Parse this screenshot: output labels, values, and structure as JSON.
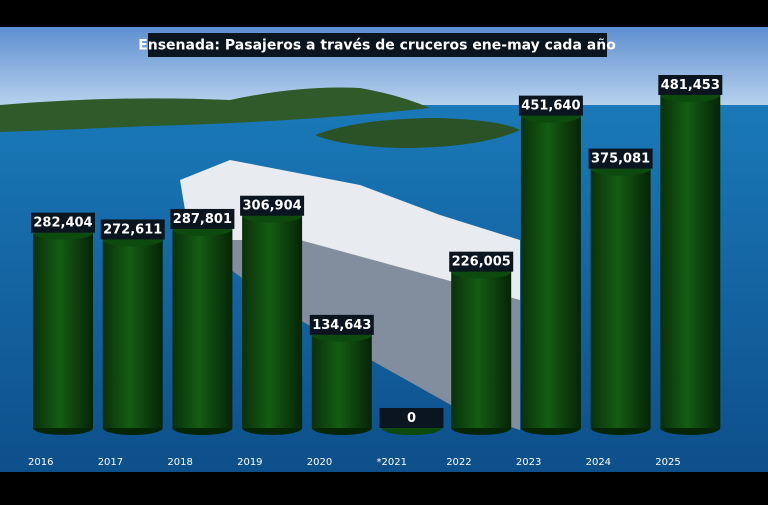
{
  "chart_data": {
    "type": "bar",
    "title": "Ensenada: Pasajeros a través de cruceros ene-may cada año",
    "categories": [
      "2016",
      "2017",
      "2018",
      "2019",
      "2020",
      "*2021",
      "2022",
      "2023",
      "2024",
      "2025"
    ],
    "values": [
      282404,
      272611,
      287801,
      306904,
      134643,
      0,
      226005,
      451640,
      375081,
      481453
    ],
    "value_labels": [
      "282,404",
      "272,611",
      "287,801",
      "306,904",
      "134,643",
      "0",
      "226,005",
      "451,640",
      "375,081",
      "481,453"
    ],
    "color": "#0d4a0d"
  }
}
